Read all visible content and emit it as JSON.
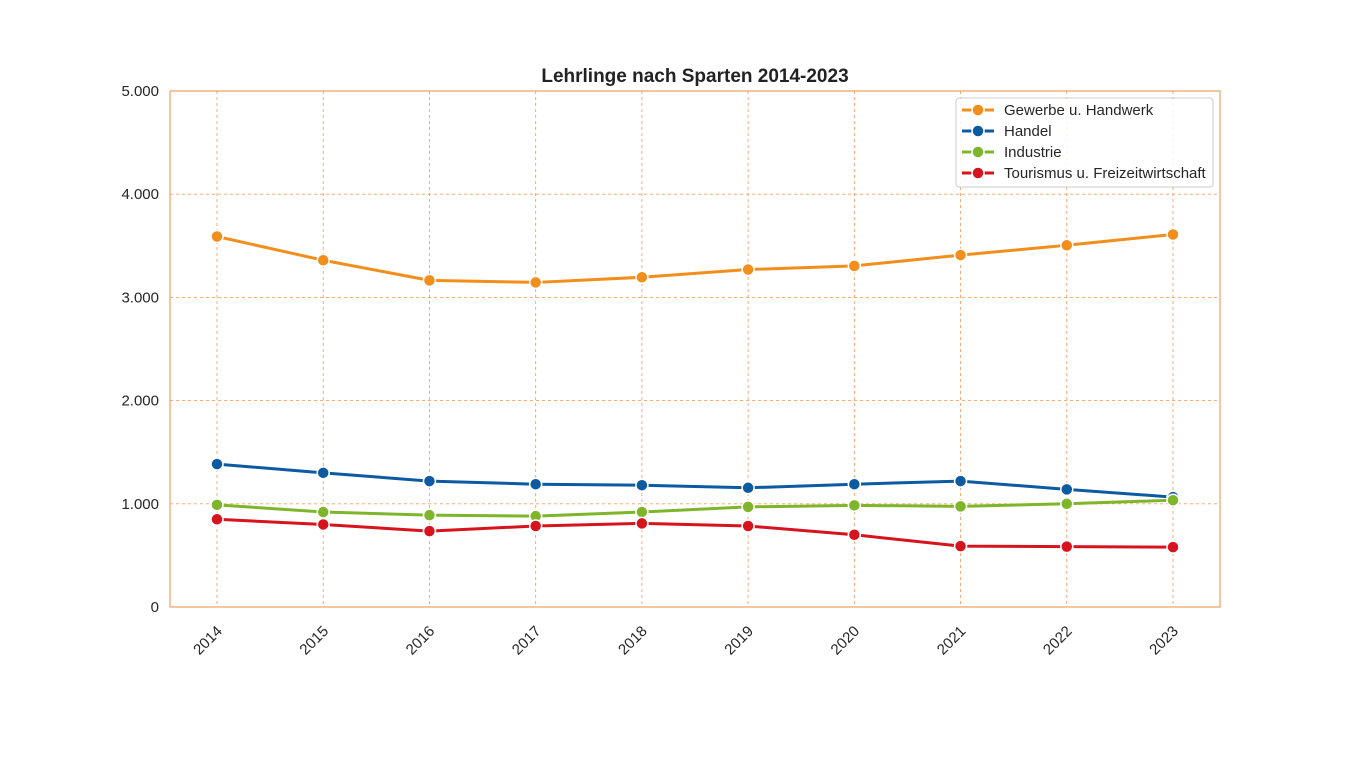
{
  "chart_data": {
    "type": "line",
    "title": "Lehrlinge nach Sparten 2014-2023",
    "xlabel": "",
    "ylabel": "",
    "categories": [
      "2014",
      "2015",
      "2016",
      "2017",
      "2018",
      "2019",
      "2020",
      "2021",
      "2022",
      "2023"
    ],
    "ylim": [
      0,
      5000
    ],
    "yticks": [
      0,
      1000,
      2000,
      3000,
      4000,
      5000
    ],
    "ytick_labels": [
      "0",
      "1.000",
      "2.000",
      "3.000",
      "4.000",
      "5.000"
    ],
    "grid": true,
    "legend_position": "top-right",
    "series": [
      {
        "name": "Gewerbe u. Handwerk",
        "color": "#f28e1c",
        "values": [
          3590,
          3360,
          3165,
          3145,
          3195,
          3270,
          3305,
          3410,
          3505,
          3610
        ]
      },
      {
        "name": "Handel",
        "color": "#0b5aa2",
        "values": [
          1385,
          1300,
          1220,
          1190,
          1180,
          1155,
          1190,
          1220,
          1140,
          1065
        ]
      },
      {
        "name": "Industrie",
        "color": "#7fb52b",
        "values": [
          990,
          920,
          890,
          880,
          920,
          970,
          985,
          975,
          1000,
          1035
        ]
      },
      {
        "name": "Tourismus u. Freizeitwirtschaft",
        "color": "#d7141e",
        "values": [
          850,
          800,
          735,
          785,
          810,
          785,
          700,
          590,
          585,
          580
        ]
      }
    ]
  },
  "style": {
    "frame_color": "#f0a060",
    "grid_color": "#f5a06a",
    "background": "#ffffff"
  }
}
